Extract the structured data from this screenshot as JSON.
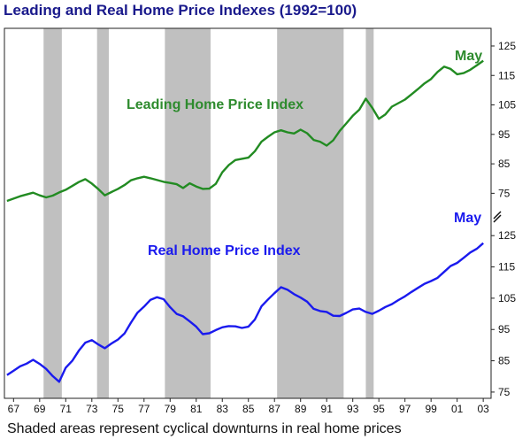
{
  "title": "Leading and Real Home Price Indexes (1992=100)",
  "caption": "Shaded areas represent cyclical downturns in real home prices",
  "chart_data": [
    {
      "type": "line",
      "series": [
        {
          "name": "Leading Home Price Index",
          "endpoint_label": "May",
          "color": "#228B22",
          "x": [
            1966.5,
            1967,
            1967.5,
            1968,
            1968.5,
            1969,
            1969.5,
            1970,
            1970.5,
            1971,
            1971.5,
            1972,
            1972.5,
            1973,
            1973.5,
            1974,
            1974.5,
            1975,
            1975.5,
            1976,
            1976.5,
            1977,
            1977.5,
            1978,
            1978.5,
            1979,
            1979.5,
            1980,
            1980.5,
            1981,
            1981.5,
            1982,
            1982.5,
            1983,
            1983.5,
            1984,
            1984.5,
            1985,
            1985.5,
            1986,
            1986.5,
            1987,
            1987.5,
            1988,
            1988.5,
            1989,
            1989.5,
            1990,
            1990.5,
            1991,
            1991.5,
            1992,
            1992.5,
            1993,
            1993.5,
            1994,
            1994.5,
            1995,
            1995.5,
            1996,
            1996.5,
            1997,
            1997.5,
            1998,
            1998.5,
            1999,
            1999.5,
            2000,
            2000.5,
            2001,
            2001.5,
            2002,
            2002.5,
            2003
          ],
          "y": [
            72.4,
            73.2,
            74.0,
            74.6,
            75.2,
            74.3,
            73.6,
            74.2,
            75.3,
            76.2,
            77.5,
            78.8,
            79.8,
            78.3,
            76.4,
            74.3,
            75.4,
            76.5,
            77.8,
            79.4,
            80.1,
            80.6,
            80.1,
            79.5,
            78.9,
            78.5,
            78.1,
            76.8,
            78.4,
            77.3,
            76.5,
            76.6,
            78.2,
            82.1,
            84.6,
            86.3,
            86.7,
            87.1,
            89.3,
            92.5,
            94.2,
            95.7,
            96.4,
            95.7,
            95.3,
            96.6,
            95.4,
            93.1,
            92.5,
            91.2,
            93.0,
            96.2,
            98.7,
            101.3,
            103.4,
            107.1,
            104.0,
            100.3,
            101.8,
            104.4,
            105.6,
            106.8,
            108.6,
            110.4,
            112.3,
            113.8,
            116.2,
            118.0,
            117.2,
            115.4,
            115.8,
            116.9,
            118.4,
            120.0
          ]
        },
        {
          "name": "Real Home Price Index",
          "endpoint_label": "May",
          "color": "#1a1aee",
          "x": [
            1966.5,
            1967,
            1967.5,
            1968,
            1968.5,
            1969,
            1969.5,
            1970,
            1970.5,
            1971,
            1971.5,
            1972,
            1972.5,
            1973,
            1973.5,
            1974,
            1974.5,
            1975,
            1975.5,
            1976,
            1976.5,
            1977,
            1977.5,
            1978,
            1978.5,
            1979,
            1979.5,
            1980,
            1980.5,
            1981,
            1981.5,
            1982,
            1982.5,
            1983,
            1983.5,
            1984,
            1984.5,
            1985,
            1985.5,
            1986,
            1986.5,
            1987,
            1987.5,
            1988,
            1988.5,
            1989,
            1989.5,
            1990,
            1990.5,
            1991,
            1991.5,
            1992,
            1992.5,
            1993,
            1993.5,
            1994,
            1994.5,
            1995,
            1995.5,
            1996,
            1996.5,
            1997,
            1997.5,
            1998,
            1998.5,
            1999,
            1999.5,
            2000,
            2000.5,
            2001,
            2001.5,
            2002,
            2002.5,
            2003
          ],
          "y": [
            80.4,
            81.8,
            83.2,
            84.1,
            85.3,
            84.0,
            82.4,
            80.1,
            78.3,
            82.8,
            85.0,
            88.2,
            90.8,
            91.6,
            90.2,
            89.0,
            90.5,
            91.8,
            93.7,
            97.2,
            100.4,
            102.3,
            104.5,
            105.3,
            104.7,
            102.1,
            100.0,
            99.2,
            97.6,
            95.9,
            93.5,
            93.8,
            94.8,
            95.7,
            96.1,
            96.0,
            95.5,
            95.9,
            98.2,
            102.4,
            104.6,
            106.6,
            108.5,
            107.7,
            106.3,
            105.2,
            103.9,
            101.6,
            100.9,
            100.6,
            99.4,
            99.3,
            100.3,
            101.4,
            101.7,
            100.6,
            100.0,
            101.0,
            102.2,
            103.1,
            104.4,
            105.6,
            107.0,
            108.3,
            109.6,
            110.5,
            111.5,
            113.4,
            115.3,
            116.3,
            117.9,
            119.6,
            120.8,
            122.6
          ]
        }
      ],
      "recessions": [
        [
          1969.3,
          1970.7
        ],
        [
          1973.4,
          1974.3
        ],
        [
          1978.6,
          1982.1
        ],
        [
          1987.2,
          1992.3
        ],
        [
          1994.0,
          1994.6
        ]
      ],
      "xlim": [
        1966.3,
        2003.6
      ],
      "x_ticks": [
        "67",
        "69",
        "71",
        "73",
        "75",
        "77",
        "79",
        "81",
        "83",
        "85",
        "87",
        "89",
        "91",
        "93",
        "95",
        "97",
        "99",
        "01",
        "03"
      ],
      "x_tick_years": [
        1967,
        1969,
        1971,
        1973,
        1975,
        1977,
        1979,
        1981,
        1983,
        1985,
        1987,
        1989,
        1991,
        1993,
        1995,
        1997,
        1999,
        2001,
        2003
      ],
      "upper_axis": {
        "ylim": [
          67,
          131
        ],
        "ticks": [
          75,
          85,
          95,
          105,
          115,
          125
        ]
      },
      "lower_axis": {
        "ylim": [
          73,
          131
        ],
        "ticks": [
          75,
          85,
          95,
          105,
          115,
          125
        ]
      },
      "shading_color": "#c0c0c0",
      "grid": false
    }
  ]
}
